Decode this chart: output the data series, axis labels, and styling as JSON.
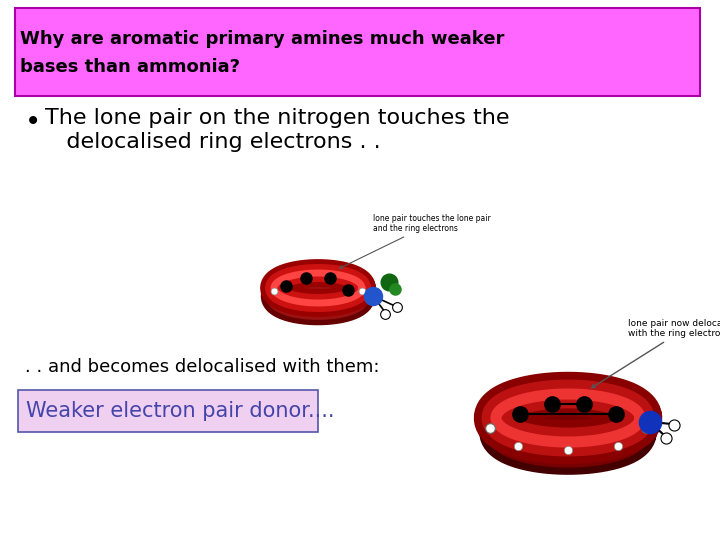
{
  "title_text": "Why are aromatic primary amines much weaker\nbases than ammonia?",
  "title_bg": "#FF66FF",
  "title_fg": "#000000",
  "bullet_line1": "The lone pair on the nitrogen touches the",
  "bullet_line2": "   delocalised ring electrons . .",
  "and_text": ". . and becomes delocalised with them:",
  "box_text": "Weaker electron pair donor....",
  "box_bg": "#F0D0F0",
  "box_border": "#5555AA",
  "annotation_left_line1": "lone pair touches the lone pair",
  "annotation_left_line2": "and the ring electrons",
  "annotation_right_line1": "lone pair now delocalised",
  "annotation_right_line2": "with the ring electrons",
  "bg_color": "#FFFFFF",
  "body_text_color": "#000000",
  "box_text_color": "#4444AA",
  "ring_dark": "#880000",
  "ring_mid": "#CC0000",
  "ring_light": "#FF3333"
}
